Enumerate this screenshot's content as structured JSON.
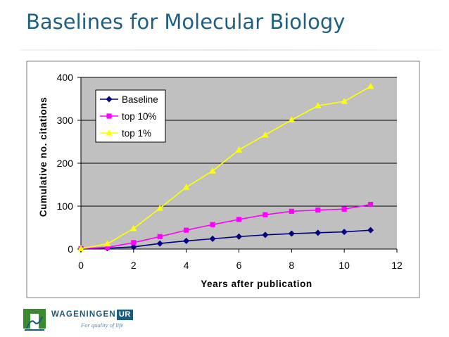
{
  "slide": {
    "title": "Baselines for Molecular Biology"
  },
  "logo": {
    "wordmark": "WAGENINGEN",
    "wordmark_suffix": "UR",
    "tagline": "For quality of life",
    "brand_color": "#1c5a7a",
    "green_color": "#3a8a2e"
  },
  "chart_data": {
    "type": "line",
    "title": "",
    "xlabel": "Years after publication",
    "ylabel": "Cumulative no. citations",
    "xlim": [
      0,
      12
    ],
    "ylim": [
      0,
      400
    ],
    "xticks": [
      0,
      2,
      4,
      6,
      8,
      10,
      12
    ],
    "yticks": [
      0,
      100,
      200,
      300,
      400
    ],
    "grid": "horizontal",
    "plot_background": "#c0c0c0",
    "legend_position": "top-left",
    "series": [
      {
        "name": "Baseline",
        "color": "#000080",
        "marker": "diamond",
        "x": [
          0,
          1,
          2,
          3,
          4,
          5,
          6,
          7,
          8,
          9,
          10,
          11
        ],
        "y": [
          0,
          2,
          5,
          13,
          19,
          24,
          29,
          33,
          36,
          38,
          40,
          44
        ]
      },
      {
        "name": "top 10%",
        "color": "#ff00ff",
        "marker": "square",
        "x": [
          0,
          1,
          2,
          3,
          4,
          5,
          6,
          7,
          8,
          9,
          10,
          11
        ],
        "y": [
          1,
          4,
          15,
          29,
          44,
          57,
          69,
          80,
          88,
          91,
          93,
          104
        ]
      },
      {
        "name": "top 1%",
        "color": "#ffff00",
        "marker": "triangle",
        "x": [
          0,
          1,
          2,
          3,
          4,
          5,
          6,
          7,
          8,
          9,
          10,
          11
        ],
        "y": [
          1,
          12,
          48,
          95,
          144,
          182,
          231,
          266,
          301,
          334,
          344,
          379
        ]
      }
    ]
  }
}
